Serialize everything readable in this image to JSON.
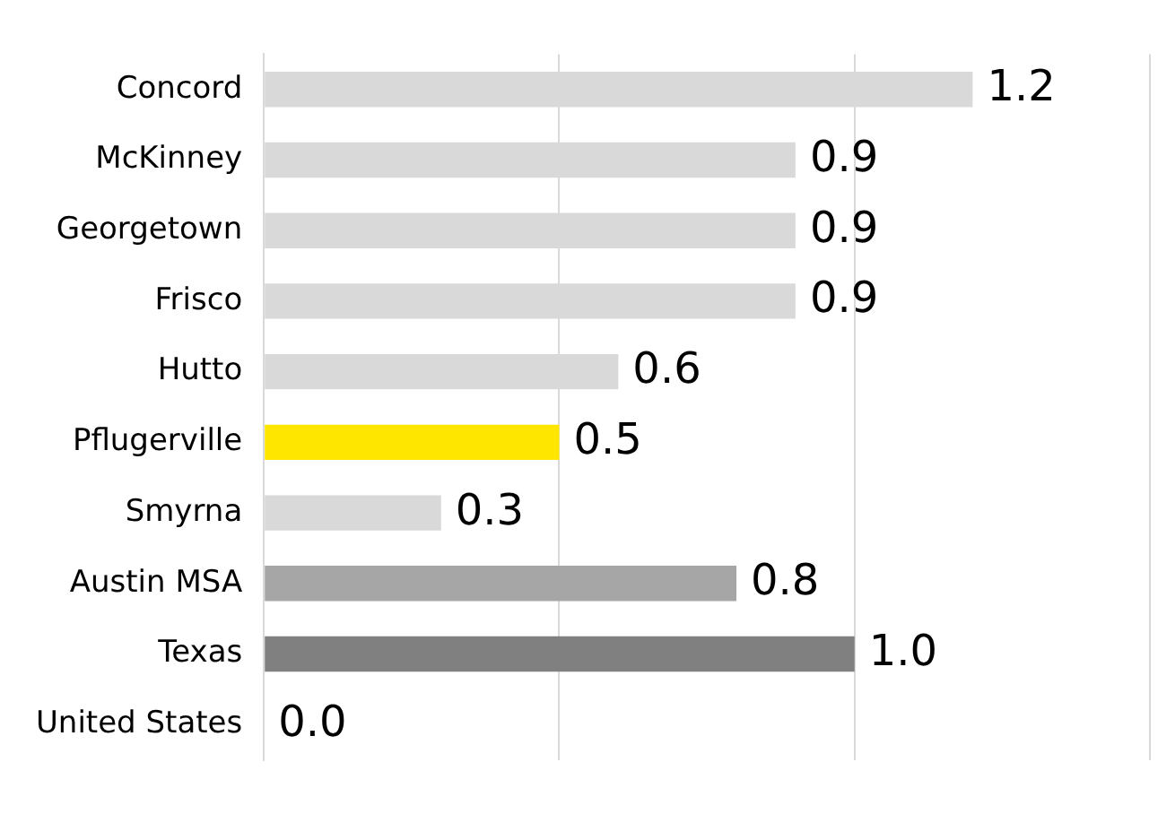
{
  "chart_data": {
    "type": "bar",
    "orientation": "horizontal",
    "categories": [
      "Concord",
      "McKinney",
      "Georgetown",
      "Frisco",
      "Hutto",
      "Pflugerville",
      "Smyrna",
      "Austin MSA",
      "Texas",
      "United States"
    ],
    "values": [
      1.2,
      0.9,
      0.9,
      0.9,
      0.6,
      0.5,
      0.3,
      0.8,
      1.0,
      0.0
    ],
    "colors": [
      "#d9d9d9",
      "#d9d9d9",
      "#d9d9d9",
      "#d9d9d9",
      "#d9d9d9",
      "#ffe600",
      "#d9d9d9",
      "#a6a6a6",
      "#808080",
      "#d9d9d9"
    ],
    "value_labels": [
      "1.2",
      "0.9",
      "0.9",
      "0.9",
      "0.6",
      "0.5",
      "0.3",
      "0.8",
      "1.0",
      "0.0"
    ],
    "xlim": [
      0,
      1.5
    ],
    "xticks": [
      {
        "value": 0,
        "label": null
      },
      {
        "value": 0.5,
        "label": null
      },
      {
        "value": 1,
        "label": null
      },
      {
        "value": 1.5,
        "label": null
      }
    ],
    "tick_labels": "y",
    "grid": "x"
  }
}
